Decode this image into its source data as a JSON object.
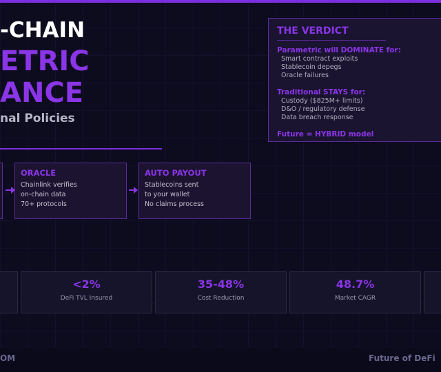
{
  "header": {
    "title_lines": [
      "-CHAIN",
      "ETRIC",
      "ANCE"
    ],
    "subtitle": "nal Policies"
  },
  "verdict": {
    "title": "THE VERDICT",
    "sections": [
      {
        "heading": "Parametric will DOMINATE for:",
        "items": [
          "Smart contract exploits",
          "Stablecoin depegs",
          "Oracle failures"
        ]
      },
      {
        "heading": "Traditional STAYS for:",
        "items": [
          "Custody ($825M+ limits)",
          "D&O / regulatory defense",
          "Data breach response"
        ]
      }
    ],
    "conclusion": "Future = HYBRID model"
  },
  "steps": [
    {
      "title": "ORACLE",
      "lines": [
        "Chainlink verifies",
        "on-chain data",
        "70+ protocols"
      ]
    },
    {
      "title": "AUTO PAYOUT",
      "lines": [
        "Stablecoins sent",
        "to your wallet",
        "No claims process"
      ]
    }
  ],
  "stats": [
    {
      "value": "<2%",
      "label": "DeFi TVL Insured"
    },
    {
      "value": "35-48%",
      "label": "Cost Reduction"
    },
    {
      "value": "48.7%",
      "label": "Market CAGR"
    }
  ],
  "footer": {
    "left": "OM",
    "right": "Future of DeFi"
  }
}
